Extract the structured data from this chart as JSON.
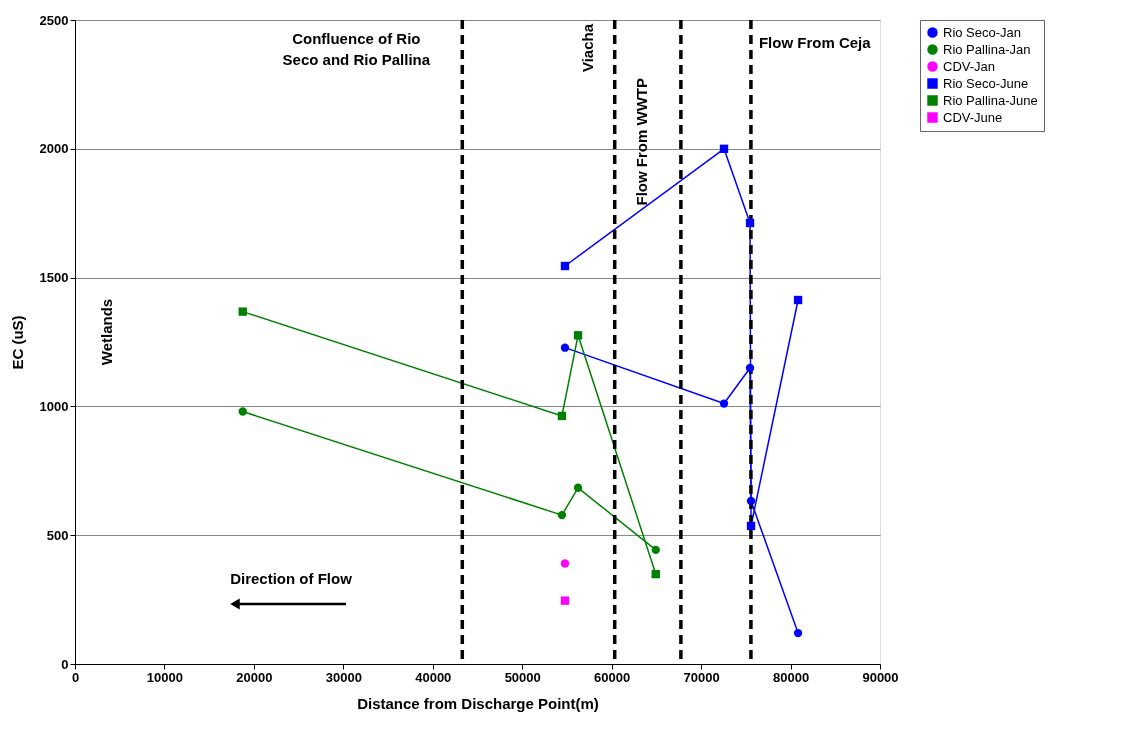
{
  "chart_data": {
    "type": "line",
    "xlabel": "Distance from Discharge Point(m)",
    "ylabel": "EC (uS)",
    "xlim": [
      0,
      90000
    ],
    "xticks": [
      0,
      10000,
      20000,
      30000,
      40000,
      50000,
      60000,
      70000,
      80000,
      90000
    ],
    "ylim": [
      0,
      2500
    ],
    "yticks": [
      0,
      500,
      1000,
      1500,
      2000,
      2500
    ],
    "grid": "y",
    "legend": "right",
    "line_style": "solid",
    "series": [
      {
        "name": "Rio Seco-Jan",
        "color": "#0000ff",
        "marker": "circle",
        "x": [
          54780,
          72560,
          75470,
          75580,
          80840
        ],
        "values": [
          1228,
          1011,
          1149,
          633,
          120
        ]
      },
      {
        "name": "Rio Pallina-Jan",
        "color": "#008000",
        "marker": "circle",
        "x": [
          18750,
          54440,
          56240,
          64930
        ],
        "values": [
          980,
          578,
          684,
          443
        ]
      },
      {
        "name": "CDV-Jan",
        "color": "#ff00ff",
        "marker": "circle",
        "x": [
          54780
        ],
        "values": [
          390
        ]
      },
      {
        "name": "Rio Seco-June",
        "color": "#0000ff",
        "marker": "square",
        "x": [
          54780,
          72560,
          75470,
          75580,
          80840
        ],
        "values": [
          1545,
          2000,
          1712,
          536,
          1413
        ]
      },
      {
        "name": "Rio Pallina-June",
        "color": "#008000",
        "marker": "square",
        "x": [
          18750,
          54440,
          56240,
          64930
        ],
        "values": [
          1368,
          963,
          1276,
          349
        ]
      },
      {
        "name": "CDV-June",
        "color": "#ff00ff",
        "marker": "square",
        "x": [
          54780
        ],
        "values": [
          246
        ]
      }
    ],
    "ref_lines": [
      {
        "axis": "x",
        "value": 43300,
        "label": "Confluence of Rio Seco and Rio Pallina",
        "color": "#000000",
        "line_style": "dashed"
      },
      {
        "axis": "x",
        "value": 60340,
        "label": "Viacha",
        "color": "#000000",
        "line_style": "dashed"
      },
      {
        "axis": "x",
        "value": 67740,
        "label": "Flow From WWTP",
        "color": "#000000",
        "line_style": "dashed"
      },
      {
        "axis": "x",
        "value": 75570,
        "label": "Flow From Ceja",
        "color": "#000000",
        "line_style": "dashed"
      }
    ],
    "annotations": [
      "Wetlands",
      "Direction of Flow"
    ]
  }
}
